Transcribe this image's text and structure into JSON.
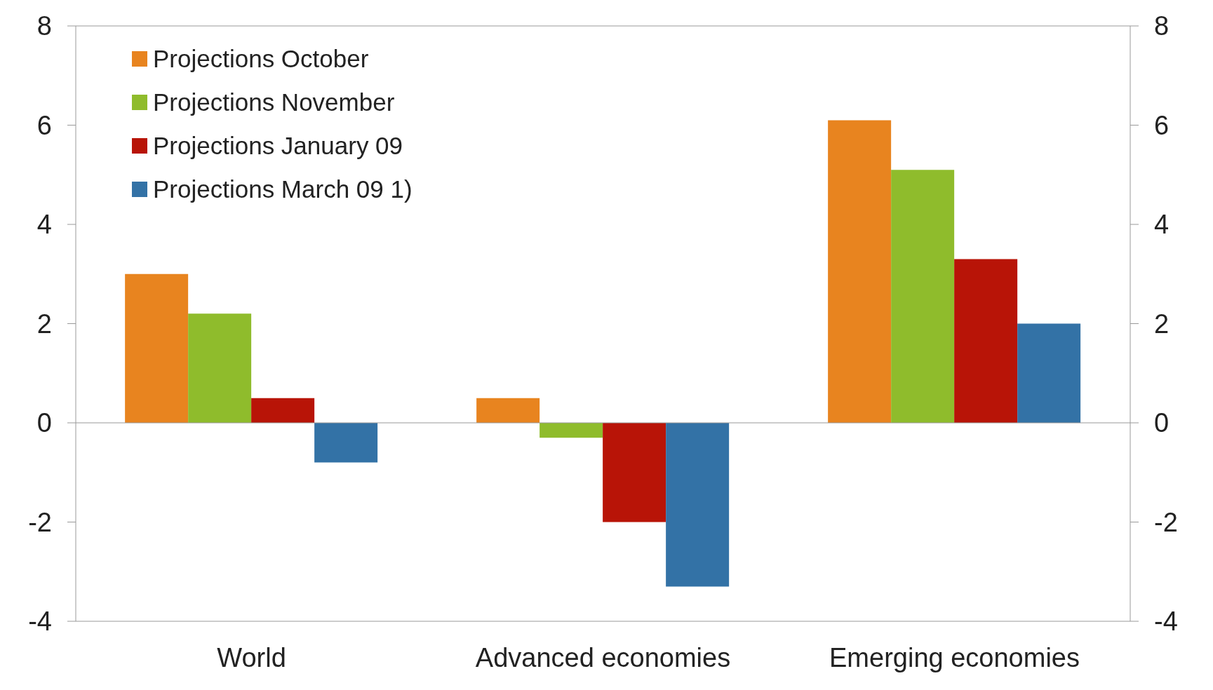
{
  "chart_data": {
    "type": "bar",
    "categories": [
      "World",
      "Advanced economies",
      "Emerging economies"
    ],
    "series": [
      {
        "name": "Projections October",
        "color": "#e8841f",
        "values": [
          3.0,
          0.5,
          6.1
        ]
      },
      {
        "name": "Projections November",
        "color": "#8fbc2c",
        "values": [
          2.2,
          -0.3,
          5.1
        ]
      },
      {
        "name": "Projections January 09",
        "color": "#b81407",
        "values": [
          0.5,
          -2.0,
          3.3
        ]
      },
      {
        "name": "Projections March 09 1)",
        "color": "#3372a6",
        "values": [
          -0.8,
          -3.3,
          2.0
        ]
      }
    ],
    "ylim": [
      -4,
      8
    ],
    "yticks": [
      -4,
      -2,
      0,
      2,
      4,
      6,
      8
    ],
    "y2lim": [
      -4,
      8
    ],
    "y2ticks": [
      -4,
      -2,
      0,
      2,
      4,
      6,
      8
    ],
    "grid": false,
    "ref_lines": [
      {
        "axis": "y",
        "value": 0,
        "color": "#999999"
      }
    ],
    "legend": "top left"
  }
}
